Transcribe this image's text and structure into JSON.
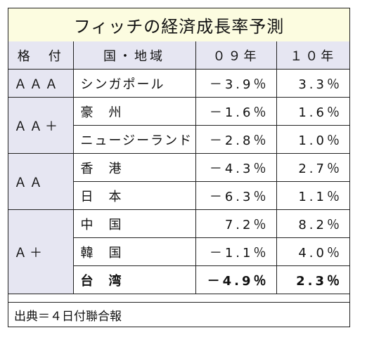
{
  "title": "フィッチの経済成長率予測",
  "headers": {
    "grade": "格　付",
    "country": "国・地域",
    "y09": "０９年",
    "y10": "１０年"
  },
  "groups": [
    {
      "grade": "ＡＡＡ",
      "rows": [
        {
          "country": "シンガポール",
          "y09": "－3.9％",
          "y10": "3.3％"
        }
      ]
    },
    {
      "grade": "ＡＡ＋",
      "rows": [
        {
          "country": "豪　州",
          "y09": "－1.6％",
          "y10": "1.6％"
        },
        {
          "country": "ニュージーランド",
          "y09": "－2.8％",
          "y10": "1.0％"
        }
      ]
    },
    {
      "grade": "ＡＡ",
      "rows": [
        {
          "country": "香　港",
          "y09": "－4.3％",
          "y10": "2.7％"
        },
        {
          "country": "日　本",
          "y09": "－6.3％",
          "y10": "1.1％"
        }
      ]
    },
    {
      "grade": "Ａ＋",
      "rows": [
        {
          "country": "中　国",
          "y09": "7.2％",
          "y10": "8.2％"
        },
        {
          "country": "韓　国",
          "y09": "－1.1％",
          "y10": "4.0％"
        },
        {
          "country": "台　湾",
          "y09": "－4.9％",
          "y10": "2.3％",
          "bold": true
        }
      ]
    }
  ],
  "source": "出典＝４日付聯合報"
}
